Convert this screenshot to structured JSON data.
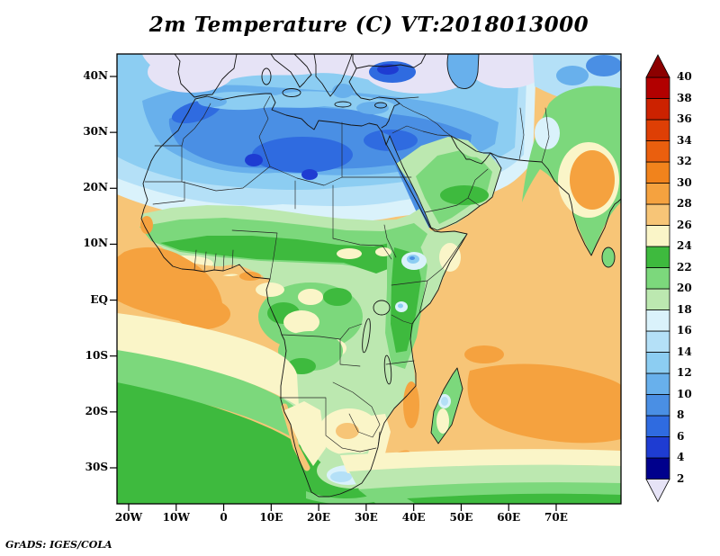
{
  "title": "2m Temperature (C) VT:2018013000",
  "credit": "GrADS: IGES/COLA",
  "axes": {
    "lat_labels": [
      "40N",
      "30N",
      "20N",
      "10N",
      "EQ",
      "10S",
      "20S",
      "30S"
    ],
    "lon_labels": [
      "20W",
      "10W",
      "0",
      "10E",
      "20E",
      "30E",
      "40E",
      "50E",
      "60E",
      "70E"
    ]
  },
  "colorbar": {
    "unit": "C",
    "levels": [
      2,
      4,
      6,
      8,
      10,
      12,
      14,
      16,
      18,
      20,
      22,
      24,
      26,
      28,
      30,
      32,
      34,
      36,
      38,
      40
    ],
    "colors": [
      "#e6e3f6",
      "#00008c",
      "#1e3cd2",
      "#2f6be0",
      "#4a8fe4",
      "#68b0ec",
      "#8ccdf2",
      "#b4e0f7",
      "#daf2fb",
      "#bce8b0",
      "#7cd87c",
      "#3eba3e",
      "#faf5c8",
      "#f7c577",
      "#f5a23f",
      "#f1831c",
      "#ea5f0e",
      "#de3f05",
      "#cc2200",
      "#b20000",
      "#8c0000"
    ]
  },
  "chart_data": {
    "type": "heatmap",
    "title": "2m Temperature (C)",
    "valid_time": "2018013000",
    "variable": "2 metre air temperature",
    "units": "degC",
    "map_extent": {
      "lon_range": [
        -22.5,
        84
      ],
      "lat_range": [
        -36,
        44
      ],
      "projection": "latlon"
    },
    "contour_levels": [
      2,
      4,
      6,
      8,
      10,
      12,
      14,
      16,
      18,
      20,
      22,
      24,
      26,
      28,
      30,
      32,
      34,
      36,
      38,
      40
    ],
    "palette_below_to_above": [
      "#e6e3f6",
      "#00008c",
      "#1e3cd2",
      "#2f6be0",
      "#4a8fe4",
      "#68b0ec",
      "#8ccdf2",
      "#b4e0f7",
      "#daf2fb",
      "#bce8b0",
      "#7cd87c",
      "#3eba3e",
      "#faf5c8",
      "#f7c577",
      "#f5a23f",
      "#f1831c",
      "#ea5f0e",
      "#de3f05",
      "#cc2200",
      "#b20000",
      "#8c0000"
    ],
    "legend_position": "right",
    "grid": "off",
    "features": [
      {
        "region": "Southern Europe / Anatolia / Iran (north edge)",
        "temp_c": "<2 to 8"
      },
      {
        "region": "Mediterranean Sea",
        "temp_c": "10-14"
      },
      {
        "region": "Sahara Desert (18-32N)",
        "temp_c": "6-14, coldest over Hoggar/Tibesti highlands"
      },
      {
        "region": "Sahel belt (10-16N)",
        "temp_c": "18-24"
      },
      {
        "region": "Gulf of Guinea coast and tropical Atlantic",
        "temp_c": "26-30"
      },
      {
        "region": "Congo Basin",
        "temp_c": "20-26"
      },
      {
        "region": "Ethiopian Highlands / Kenya Highlands",
        "temp_c": "10-16"
      },
      {
        "region": "Horn of Africa / Somalia",
        "temp_c": "20-26"
      },
      {
        "region": "Arabian Peninsula",
        "temp_c": "18-24"
      },
      {
        "region": "Red Sea",
        "temp_c": "8-12"
      },
      {
        "region": "Tropical Indian Ocean",
        "temp_c": "26-30"
      },
      {
        "region": "India (Deccan interior)",
        "temp_c": "24-30"
      },
      {
        "region": "Kalahari / Namibia",
        "temp_c": "24-28"
      },
      {
        "region": "South African plateau (Lesotho)",
        "temp_c": "8-16"
      },
      {
        "region": "South Atlantic south of 20S",
        "temp_c": "18-24 decreasing southward"
      },
      {
        "region": "Southern Ocean band (south of 30S)",
        "temp_c": "18-24"
      }
    ]
  }
}
